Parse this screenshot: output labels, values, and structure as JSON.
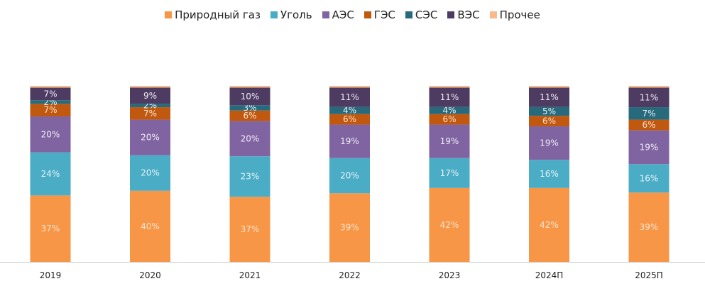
{
  "chart_data": {
    "type": "bar",
    "stacked": true,
    "percent": true,
    "title": "",
    "xlabel": "",
    "ylabel": "",
    "ylim": [
      0,
      100
    ],
    "grid": false,
    "legend_position": "top-center",
    "categories": [
      "2019",
      "2020",
      "2021",
      "2022",
      "2023",
      "2024П",
      "2025П"
    ],
    "series": [
      {
        "name": "Природный газ",
        "color": "#F79646",
        "label_color": "#FDE3CC",
        "values": [
          37,
          40,
          37,
          39,
          42,
          42,
          39
        ]
      },
      {
        "name": "Уголь",
        "color": "#4BACC6",
        "label_color": "#E6F4F8",
        "values": [
          24,
          20,
          23,
          20,
          17,
          16,
          16
        ]
      },
      {
        "name": "АЭС",
        "color": "#8064A2",
        "label_color": "#F0ECF5",
        "values": [
          20,
          20,
          20,
          19,
          19,
          19,
          19
        ]
      },
      {
        "name": "ГЭС",
        "color": "#C0580F",
        "label_color": "#FCE1CC",
        "values": [
          7,
          7,
          6,
          6,
          6,
          6,
          6
        ]
      },
      {
        "name": "СЭС",
        "color": "#276A7C",
        "label_color": "#E2F1F5",
        "values": [
          2,
          2,
          3,
          4,
          4,
          5,
          7
        ]
      },
      {
        "name": "ВЭС",
        "color": "#4D3B62",
        "label_color": "#EEEAF3",
        "values": [
          7,
          9,
          10,
          11,
          11,
          11,
          11
        ]
      },
      {
        "name": "Прочее",
        "color": "#F9B98A",
        "label_color": "",
        "values": [
          1,
          1,
          1,
          1,
          1,
          1,
          1
        ]
      }
    ],
    "data_labels_suffix": "%",
    "hidden_labels": [
      "Прочее"
    ]
  },
  "colors": {
    "axis": "#D0D0D0",
    "tick_text": "#222222"
  }
}
